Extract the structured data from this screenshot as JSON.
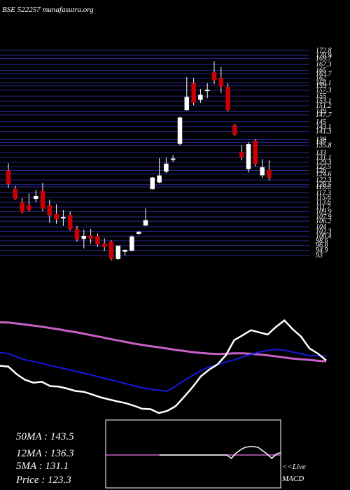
{
  "header": {
    "watermark": "BSE 522257 munafasutra.org"
  },
  "stats": {
    "ma50_label": "50MA : 143.5",
    "ma12_label": "12MA : 136.3",
    "ma5_label": "5MA : 131.1",
    "price_label": "Price   : 123.3"
  },
  "macd_panel": {
    "live_label": "<<Live",
    "macd_label": "MACD"
  },
  "colors": {
    "background": "#000000",
    "grid": "#2a2a9a",
    "up": "#ffffff",
    "down": "#cc0000",
    "ma50": "#c860c8",
    "ma12": "#1818e0",
    "ma5": "#ffffff"
  },
  "chart_data": [
    {
      "type": "candlestick",
      "title": "",
      "ylim": [
        91.5,
        172.8
      ],
      "y_ticks": [
        172.8,
        170.9,
        169.7,
        167.3,
        165.0,
        163.7,
        162.0,
        160.1,
        159.0,
        157.3,
        155.0,
        153.1,
        151.2,
        149.0,
        147.7,
        145.0,
        143.1,
        141.3,
        138.0,
        137.0,
        135.8,
        133.0,
        131.1,
        129.3,
        127.5,
        126.0,
        124.6,
        122.3,
        120.5,
        119.6,
        117.3,
        115.6,
        113.6,
        111.7,
        109.9,
        107.9,
        106.2,
        104.0,
        102.3,
        100.4,
        98.6,
        96.8,
        94.9,
        93.0
      ],
      "candles": [
        {
          "o": 126.0,
          "h": 128.8,
          "c": 120.8,
          "l": 119.2
        },
        {
          "o": 118.8,
          "h": 120.0,
          "c": 115.0,
          "l": 114.6
        },
        {
          "o": 113.6,
          "h": 115.2,
          "c": 109.8,
          "l": 109.2
        },
        {
          "o": 112.4,
          "h": 117.0,
          "c": 110.6,
          "l": 110.0
        },
        {
          "o": 115.0,
          "h": 118.4,
          "c": 116.0,
          "l": 113.6
        },
        {
          "o": 118.0,
          "h": 121.2,
          "c": 111.2,
          "l": 110.2
        },
        {
          "o": 112.4,
          "h": 114.6,
          "c": 108.6,
          "l": 105.6
        },
        {
          "o": 109.0,
          "h": 112.8,
          "c": 107.0,
          "l": 105.2
        },
        {
          "o": 107.4,
          "h": 110.6,
          "c": 107.8,
          "l": 104.4
        },
        {
          "o": 108.6,
          "h": 110.0,
          "c": 103.2,
          "l": 102.6
        },
        {
          "o": 103.2,
          "h": 104.4,
          "c": 99.2,
          "l": 98.2
        },
        {
          "o": 99.4,
          "h": 103.0,
          "c": 100.4,
          "l": 95.6
        },
        {
          "o": 100.6,
          "h": 103.2,
          "c": 99.4,
          "l": 97.4
        },
        {
          "o": 100.4,
          "h": 101.4,
          "c": 97.2,
          "l": 96.2
        },
        {
          "o": 97.6,
          "h": 99.6,
          "c": 96.2,
          "l": 94.6
        },
        {
          "o": 98.2,
          "h": 98.8,
          "c": 91.6,
          "l": 91.0
        },
        {
          "o": 91.6,
          "h": 96.8,
          "c": 96.6,
          "l": 91.2
        },
        {
          "o": 94.4,
          "h": 95.2,
          "c": 95.0,
          "l": 92.8
        },
        {
          "o": 94.8,
          "h": 100.8,
          "c": 100.2,
          "l": 94.4
        },
        {
          "o": 101.4,
          "h": 102.4,
          "c": 102.0,
          "l": 100.8
        },
        {
          "o": 104.6,
          "h": 111.2,
          "c": 106.6,
          "l": 104.4
        },
        {
          "o": 118.8,
          "h": 123.4,
          "c": 123.2,
          "l": 118.6
        },
        {
          "o": 121.4,
          "h": 130.8,
          "c": 124.0,
          "l": 121.0
        },
        {
          "o": 125.6,
          "h": 131.0,
          "c": 128.6,
          "l": 125.0
        },
        {
          "o": 130.2,
          "h": 132.0,
          "c": 130.6,
          "l": 129.4
        },
        {
          "o": 136.4,
          "h": 147.0,
          "c": 146.6,
          "l": 135.8
        },
        {
          "o": 149.6,
          "h": 162.4,
          "c": 154.6,
          "l": 149.4
        },
        {
          "o": 160.0,
          "h": 162.0,
          "c": 152.4,
          "l": 151.4
        },
        {
          "o": 153.6,
          "h": 157.8,
          "c": 155.4,
          "l": 152.4
        },
        {
          "o": 157.0,
          "h": 160.0,
          "c": 157.4,
          "l": 154.2
        },
        {
          "o": 164.2,
          "h": 168.6,
          "c": 161.2,
          "l": 159.6
        },
        {
          "o": 162.0,
          "h": 166.4,
          "c": 158.8,
          "l": 156.2
        },
        {
          "o": 158.6,
          "h": 160.0,
          "c": 149.6,
          "l": 149.0
        },
        {
          "o": 143.6,
          "h": 144.2,
          "c": 140.0,
          "l": 139.6
        },
        {
          "o": 133.2,
          "h": 135.8,
          "c": 131.2,
          "l": 130.0
        },
        {
          "o": 126.6,
          "h": 137.0,
          "c": 136.2,
          "l": 125.2
        },
        {
          "o": 137.6,
          "h": 138.2,
          "c": 128.6,
          "l": 127.6
        },
        {
          "o": 124.2,
          "h": 130.4,
          "c": 127.2,
          "l": 123.0
        },
        {
          "o": 126.2,
          "h": 130.0,
          "c": 123.2,
          "l": 122.2
        }
      ]
    },
    {
      "type": "line",
      "title": "",
      "series": [
        {
          "values": [
            165.0,
            164.9,
            164.5,
            164.0,
            163.5,
            163.0,
            162.4,
            161.8,
            161.1,
            160.5,
            159.8,
            159.0,
            158.3,
            157.5,
            156.7,
            156.0,
            155.2,
            154.6,
            154.0,
            153.5,
            152.9,
            152.3,
            151.8,
            151.3,
            150.9,
            150.6,
            150.4,
            150.5,
            150.7,
            150.7,
            150.5,
            150.2,
            149.8,
            149.3,
            148.8,
            148.3,
            148.0,
            147.7,
            147.3,
            147.0
          ]
        },
        {
          "values": [
            151.0,
            150.7,
            149.0,
            147.7,
            147.0,
            146.2,
            145.1,
            144.3,
            143.4,
            142.5,
            141.6,
            140.7,
            139.7,
            138.7,
            137.8,
            136.8,
            135.8,
            134.8,
            134.2,
            133.7,
            133.3,
            135.6,
            138.2,
            140.5,
            142.8,
            144.4,
            145.5,
            146.7,
            147.7,
            149.1,
            150.2,
            151.4,
            152.0,
            152.5,
            152.2,
            151.3,
            150.5,
            149.7,
            149.6,
            149.5
          ]
        },
        {
          "values": [
            145.0,
            144.6,
            141.1,
            138.5,
            137.2,
            137.6,
            135.6,
            135.4,
            134.5,
            133.4,
            133.0,
            131.8,
            130.5,
            129.5,
            128.6,
            127.8,
            126.6,
            125.2,
            125.0,
            123.2,
            124.2,
            126.4,
            130.6,
            135.0,
            140.1,
            143.2,
            145.6,
            149.8,
            156.8,
            159.0,
            161.4,
            160.4,
            159.4,
            162.9,
            165.9,
            161.8,
            158.4,
            153.0,
            150.6,
            147.5
          ]
        }
      ]
    },
    {
      "type": "line",
      "title": "",
      "series": [
        {
          "values": [
            0,
            0,
            0,
            0,
            0,
            0,
            0,
            0,
            0,
            0,
            0,
            0,
            0,
            0,
            0,
            0,
            0,
            0,
            0,
            0,
            0,
            0,
            0,
            0,
            0,
            0,
            0,
            0,
            0,
            0,
            0,
            0,
            0,
            0,
            0,
            0,
            0,
            0,
            0,
            0
          ]
        },
        {
          "values": [
            0,
            0,
            0,
            0,
            0,
            0,
            0,
            0,
            0,
            0,
            0,
            0,
            0,
            0,
            0,
            0,
            -0.4,
            0.2,
            0.6,
            0.9,
            1.0,
            1.0,
            0.9,
            0.5,
            0.1,
            -0.4,
            0.1,
            0.3
          ]
        }
      ]
    }
  ]
}
